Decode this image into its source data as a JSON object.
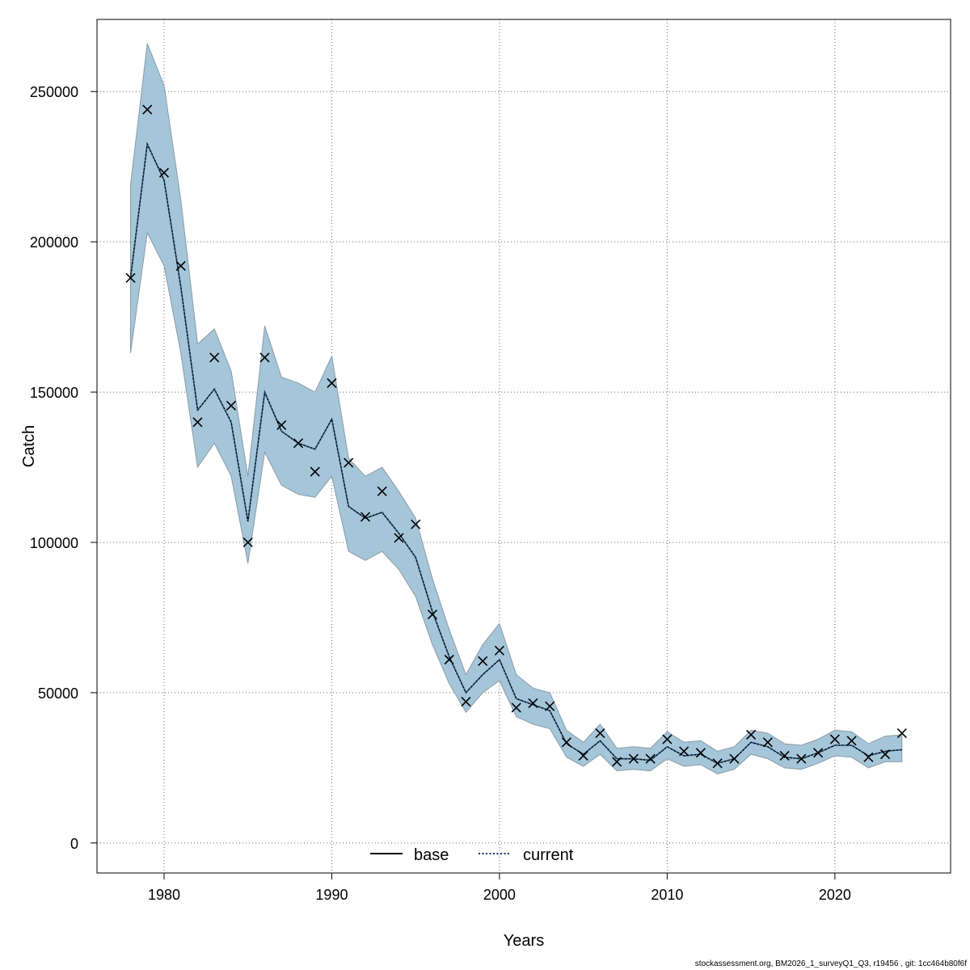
{
  "chart_data": {
    "type": "line",
    "xlabel": "Years",
    "ylabel": "Catch",
    "xlim": [
      1976,
      2026.9
    ],
    "ylim": [
      -10000,
      274000
    ],
    "x_ticks": [
      1980,
      1990,
      2000,
      2010,
      2020
    ],
    "y_ticks": [
      0,
      50000,
      100000,
      150000,
      200000,
      250000
    ],
    "grid": true,
    "legend_position": "bottom-center",
    "colors": {
      "band": "#a5c5d8",
      "band_edge": "#8a9ba8",
      "current_line": "#003a66",
      "base_line": "#000000",
      "grid": "#666666",
      "marker": "#000000"
    },
    "legend": [
      {
        "label": "base",
        "style": "solid"
      },
      {
        "label": "current",
        "style": "dotted"
      }
    ],
    "years": [
      1978,
      1979,
      1980,
      1981,
      1982,
      1983,
      1984,
      1985,
      1986,
      1987,
      1988,
      1989,
      1990,
      1991,
      1992,
      1993,
      1994,
      1995,
      1996,
      1997,
      1998,
      1999,
      2000,
      2001,
      2002,
      2003,
      2004,
      2005,
      2006,
      2007,
      2008,
      2009,
      2010,
      2011,
      2012,
      2013,
      2014,
      2015,
      2016,
      2017,
      2018,
      2019,
      2020,
      2021,
      2022,
      2023,
      2024
    ],
    "series": [
      {
        "name": "current",
        "values": [
          188000,
          232500,
          220500,
          185000,
          144000,
          151000,
          140000,
          107000,
          150000,
          137000,
          133000,
          131000,
          141000,
          112000,
          108000,
          110000,
          103000,
          95000,
          77000,
          62000,
          50000,
          56000,
          61000,
          48000,
          46000,
          44000,
          33000,
          29500,
          34000,
          28000,
          28000,
          27500,
          32000,
          29000,
          29500,
          26500,
          28000,
          33500,
          32000,
          28500,
          28000,
          30000,
          32500,
          32500,
          29000,
          30500,
          31000
        ],
        "lower": [
          163000,
          203000,
          192000,
          163000,
          125000,
          133000,
          122000,
          93000,
          130000,
          119000,
          116000,
          115000,
          122000,
          97000,
          94000,
          97000,
          91000,
          82000,
          66000,
          53000,
          43500,
          50000,
          54000,
          42000,
          39500,
          38000,
          28500,
          25500,
          29500,
          24000,
          24500,
          24000,
          28000,
          25500,
          26000,
          23000,
          24500,
          29500,
          28000,
          25000,
          24500,
          26500,
          29000,
          28500,
          25000,
          27000,
          27000
        ]
      },
      {
        "name": "upper",
        "values": [
          219000,
          266000,
          252000,
          214000,
          166000,
          171000,
          157000,
          122000,
          172000,
          155000,
          153000,
          150000,
          162000,
          128000,
          122000,
          125000,
          117000,
          108000,
          88000,
          71000,
          56000,
          66000,
          73000,
          56000,
          51500,
          50000,
          37500,
          33500,
          39500,
          31500,
          32000,
          31500,
          37000,
          33500,
          34000,
          30500,
          32000,
          37500,
          36500,
          33000,
          32500,
          34500,
          37500,
          37000,
          33000,
          35500,
          36000
        ]
      },
      {
        "name": "observed",
        "values": [
          188000,
          244000,
          223000,
          192000,
          140000,
          161500,
          145500,
          100000,
          161500,
          139000,
          133000,
          123500,
          153000,
          126500,
          108500,
          117000,
          101500,
          106000,
          76000,
          61000,
          47000,
          60500,
          64000,
          45000,
          46500,
          45500,
          33500,
          29000,
          36500,
          27000,
          28000,
          28000,
          34500,
          30500,
          30000,
          26500,
          28000,
          36000,
          33500,
          29000,
          28000,
          30000,
          34500,
          34000,
          28500,
          29500,
          36500
        ]
      }
    ]
  },
  "footer": "stockassessment.org, BM2026_1_surveyQ1_Q3, r19456 , git: 1cc464b80f6f"
}
